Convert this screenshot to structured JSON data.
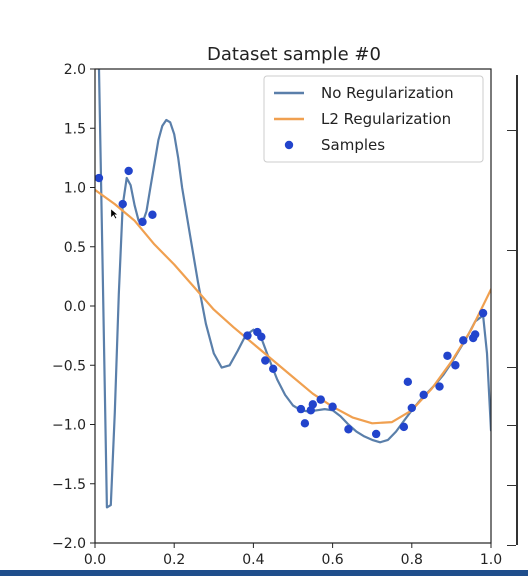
{
  "chart_data": {
    "type": "scatter",
    "title": "Dataset sample #0",
    "xlim": [
      0.0,
      1.0
    ],
    "ylim": [
      -2.0,
      2.0
    ],
    "x_ticks": [
      "0.0",
      "0.2",
      "0.4",
      "0.6",
      "0.8",
      "1.0"
    ],
    "y_ticks": [
      "2.0",
      "1.5",
      "1.0",
      "0.5",
      "0.0",
      "−0.5",
      "−1.0",
      "−1.5",
      "−2.0"
    ],
    "legend": [
      "No Regularization",
      "L2 Regularization",
      "Samples"
    ],
    "legend_position": "top-right",
    "colors": {
      "no_regularization": "#5a7faa",
      "l2_regularization": "#f0a050",
      "samples": "#2244cc"
    },
    "series": [
      {
        "name": "No Regularization",
        "kind": "line",
        "x": [
          0.01,
          0.02,
          0.03,
          0.04,
          0.05,
          0.06,
          0.07,
          0.08,
          0.09,
          0.1,
          0.11,
          0.12,
          0.13,
          0.14,
          0.15,
          0.16,
          0.17,
          0.18,
          0.19,
          0.2,
          0.21,
          0.22,
          0.24,
          0.26,
          0.28,
          0.3,
          0.32,
          0.34,
          0.36,
          0.38,
          0.4,
          0.42,
          0.44,
          0.46,
          0.48,
          0.5,
          0.52,
          0.54,
          0.56,
          0.58,
          0.6,
          0.62,
          0.64,
          0.66,
          0.68,
          0.7,
          0.72,
          0.74,
          0.76,
          0.78,
          0.8,
          0.82,
          0.84,
          0.86,
          0.88,
          0.9,
          0.92,
          0.94,
          0.96,
          0.98,
          0.99,
          1.0
        ],
        "y": [
          2.0,
          0.2,
          -1.7,
          -1.68,
          -0.9,
          0.1,
          0.85,
          1.08,
          1.02,
          0.85,
          0.72,
          0.7,
          0.8,
          1.0,
          1.2,
          1.4,
          1.52,
          1.57,
          1.55,
          1.45,
          1.25,
          1.0,
          0.6,
          0.2,
          -0.15,
          -0.4,
          -0.52,
          -0.5,
          -0.38,
          -0.25,
          -0.2,
          -0.27,
          -0.45,
          -0.62,
          -0.75,
          -0.84,
          -0.88,
          -0.89,
          -0.88,
          -0.87,
          -0.88,
          -0.93,
          -1.0,
          -1.06,
          -1.1,
          -1.13,
          -1.15,
          -1.13,
          -1.06,
          -0.97,
          -0.88,
          -0.8,
          -0.73,
          -0.66,
          -0.58,
          -0.48,
          -0.37,
          -0.26,
          -0.13,
          -0.08,
          -0.4,
          -1.05
        ]
      },
      {
        "name": "L2 Regularization",
        "kind": "line",
        "x": [
          0.0,
          0.05,
          0.1,
          0.15,
          0.2,
          0.25,
          0.3,
          0.35,
          0.4,
          0.45,
          0.5,
          0.55,
          0.6,
          0.65,
          0.7,
          0.75,
          0.8,
          0.85,
          0.9,
          0.95,
          1.0
        ],
        "y": [
          0.98,
          0.86,
          0.72,
          0.52,
          0.35,
          0.16,
          -0.03,
          -0.18,
          -0.32,
          -0.46,
          -0.6,
          -0.74,
          -0.85,
          -0.94,
          -0.99,
          -0.98,
          -0.88,
          -0.7,
          -0.47,
          -0.2,
          0.14
        ]
      },
      {
        "name": "Samples",
        "kind": "scatter",
        "x": [
          0.01,
          0.07,
          0.085,
          0.12,
          0.145,
          0.385,
          0.41,
          0.42,
          0.43,
          0.45,
          0.52,
          0.53,
          0.545,
          0.55,
          0.57,
          0.6,
          0.64,
          0.71,
          0.78,
          0.79,
          0.8,
          0.83,
          0.87,
          0.89,
          0.91,
          0.93,
          0.955,
          0.96,
          0.98
        ],
        "y": [
          1.08,
          0.86,
          1.14,
          0.71,
          0.77,
          -0.25,
          -0.22,
          -0.26,
          -0.46,
          -0.53,
          -0.87,
          -0.99,
          -0.88,
          -0.83,
          -0.79,
          -0.85,
          -1.04,
          -1.08,
          -1.02,
          -0.64,
          -0.86,
          -0.75,
          -0.68,
          -0.42,
          -0.5,
          -0.29,
          -0.27,
          -0.24,
          -0.06
        ]
      }
    ]
  }
}
